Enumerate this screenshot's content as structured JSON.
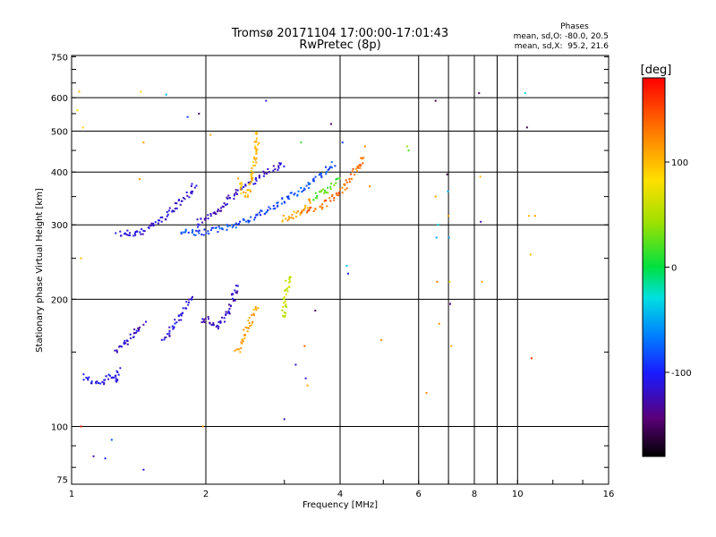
{
  "chart_data": {
    "type": "scatter",
    "title": "Tromsø 20171104 17:00:00-17:01:43",
    "subtitle": "RwPretec (8p)",
    "xlabel": "Frequency [MHz]",
    "ylabel": "Stationary phase Virtual Height [km]",
    "x_scale": "log",
    "y_scale": "log",
    "xlim": [
      1,
      16
    ],
    "ylim": [
      73,
      755
    ],
    "x_ticks": [
      1,
      2,
      4,
      6,
      8,
      10,
      16
    ],
    "x_tick_labels": [
      "1",
      "2",
      "4",
      "6",
      "8",
      "10",
      "16"
    ],
    "x_grid": [
      2,
      4,
      6,
      7,
      8,
      9,
      10
    ],
    "y_ticks": [
      75,
      100,
      200,
      300,
      400,
      500,
      600,
      750
    ],
    "y_tick_labels": [
      "75",
      "100",
      "200",
      "300",
      "400",
      "500",
      "600",
      "750"
    ],
    "y_grid": [
      100,
      200,
      300,
      400,
      500,
      600
    ],
    "grid": true,
    "colorbar": {
      "label": "[deg]",
      "range": [
        -180,
        180
      ],
      "ticks": [
        100,
        0,
        -100
      ],
      "tick_labels": [
        "100",
        "0",
        "-100"
      ]
    },
    "stats": {
      "heading": "Phases",
      "line1": "mean, sd,O: -80.0, 20.5",
      "line2": "mean, sd,X:  95.2, 21.6"
    },
    "traces": [
      {
        "points": [
          [
            1.06,
            132
          ],
          [
            1.1,
            128
          ],
          [
            1.14,
            126
          ],
          [
            1.18,
            127
          ],
          [
            1.22,
            132
          ],
          [
            1.25,
            128
          ],
          [
            1.28,
            138
          ]
        ],
        "phase": -108
      },
      {
        "points": [
          [
            1.27,
            285
          ],
          [
            1.32,
            288
          ],
          [
            1.38,
            282
          ],
          [
            1.45,
            290
          ],
          [
            1.52,
            300
          ],
          [
            1.6,
            310
          ],
          [
            1.7,
            330
          ],
          [
            1.78,
            345
          ],
          [
            1.85,
            360
          ],
          [
            1.9,
            375
          ]
        ],
        "phase": -115
      },
      {
        "points": [
          [
            1.75,
            290
          ],
          [
            1.82,
            287
          ],
          [
            1.9,
            287
          ],
          [
            1.98,
            288
          ],
          [
            2.05,
            290
          ],
          [
            2.15,
            293
          ],
          [
            2.25,
            297
          ],
          [
            2.35,
            302
          ],
          [
            2.45,
            307
          ],
          [
            2.55,
            312
          ],
          [
            2.65,
            318
          ],
          [
            2.75,
            325
          ],
          [
            2.85,
            332
          ],
          [
            2.95,
            340
          ],
          [
            3.05,
            348
          ],
          [
            3.15,
            355
          ],
          [
            3.3,
            365
          ],
          [
            3.45,
            378
          ],
          [
            3.6,
            392
          ],
          [
            3.75,
            405
          ],
          [
            3.9,
            420
          ]
        ],
        "phase": -85
      },
      {
        "points": [
          [
            1.9,
            300
          ],
          [
            2.0,
            310
          ],
          [
            2.1,
            320
          ],
          [
            2.2,
            335
          ],
          [
            2.3,
            350
          ],
          [
            2.4,
            365
          ],
          [
            2.55,
            380
          ],
          [
            2.7,
            395
          ],
          [
            2.85,
            410
          ],
          [
            3.0,
            420
          ]
        ],
        "phase": -118
      },
      {
        "points": [
          [
            1.6,
            160
          ],
          [
            1.68,
            170
          ],
          [
            1.75,
            182
          ],
          [
            1.82,
            195
          ],
          [
            1.86,
            205
          ]
        ],
        "phase": -112
      },
      {
        "points": [
          [
            1.95,
            176
          ],
          [
            2.02,
            180
          ],
          [
            2.1,
            172
          ],
          [
            2.18,
            178
          ],
          [
            2.26,
            190
          ],
          [
            2.32,
            205
          ],
          [
            2.36,
            215
          ]
        ],
        "phase": -120
      },
      {
        "points": [
          [
            1.26,
            150
          ],
          [
            1.32,
            158
          ],
          [
            1.4,
            168
          ],
          [
            1.46,
            175
          ]
        ],
        "phase": -118
      },
      {
        "points": [
          [
            2.38,
            380
          ],
          [
            2.42,
            360
          ],
          [
            2.46,
            350
          ],
          [
            2.5,
            365
          ],
          [
            2.54,
            385
          ],
          [
            2.56,
            410
          ],
          [
            2.58,
            440
          ],
          [
            2.6,
            470
          ],
          [
            2.62,
            500
          ]
        ],
        "phase": 100
      },
      {
        "points": [
          [
            2.95,
            310
          ],
          [
            3.05,
            312
          ],
          [
            3.15,
            315
          ],
          [
            3.25,
            320
          ],
          [
            3.35,
            330
          ],
          [
            3.45,
            345
          ]
        ],
        "phase": 108
      },
      {
        "points": [
          [
            3.3,
            320
          ],
          [
            3.45,
            325
          ],
          [
            3.6,
            330
          ],
          [
            3.75,
            340
          ],
          [
            3.9,
            352
          ],
          [
            4.05,
            365
          ],
          [
            4.15,
            378
          ],
          [
            4.25,
            390
          ],
          [
            4.35,
            405
          ],
          [
            4.45,
            420
          ],
          [
            4.5,
            440
          ]
        ],
        "phase": 135
      },
      {
        "points": [
          [
            3.45,
            345
          ],
          [
            3.6,
            355
          ],
          [
            3.75,
            362
          ],
          [
            3.9,
            375
          ],
          [
            4.0,
            390
          ]
        ],
        "phase": 25
      },
      {
        "points": [
          [
            2.35,
            150
          ],
          [
            2.4,
            158
          ],
          [
            2.45,
            166
          ],
          [
            2.5,
            174
          ],
          [
            2.55,
            185
          ],
          [
            2.62,
            192
          ]
        ],
        "phase": 110
      },
      {
        "points": [
          [
            2.98,
            180
          ],
          [
            3.0,
            190
          ],
          [
            3.02,
            200
          ],
          [
            3.04,
            210
          ],
          [
            3.06,
            220
          ],
          [
            3.08,
            230
          ]
        ],
        "phase": 62
      }
    ],
    "scatter": [
      [
        1.04,
        620,
        100
      ],
      [
        1.03,
        560,
        80
      ],
      [
        1.06,
        510,
        90
      ],
      [
        1.05,
        250,
        100
      ],
      [
        1.05,
        100,
        170
      ],
      [
        1.12,
        85,
        -130
      ],
      [
        1.19,
        84,
        -100
      ],
      [
        1.23,
        93,
        -80
      ],
      [
        1.45,
        79,
        -110
      ],
      [
        1.42,
        385,
        120
      ],
      [
        1.45,
        470,
        115
      ],
      [
        1.43,
        620,
        85
      ],
      [
        1.63,
        610,
        -45
      ],
      [
        1.82,
        540,
        -90
      ],
      [
        1.93,
        550,
        -150
      ],
      [
        1.97,
        100,
        120
      ],
      [
        2.05,
        490,
        110
      ],
      [
        2.73,
        590,
        -110
      ],
      [
        3.0,
        104,
        -120
      ],
      [
        3.18,
        140,
        -120
      ],
      [
        3.27,
        470,
        15
      ],
      [
        3.33,
        155,
        140
      ],
      [
        3.35,
        130,
        -120
      ],
      [
        3.38,
        125,
        110
      ],
      [
        3.52,
        188,
        -150
      ],
      [
        3.82,
        520,
        -150
      ],
      [
        4.05,
        470,
        -90
      ],
      [
        4.14,
        240,
        -40
      ],
      [
        4.17,
        230,
        -100
      ],
      [
        4.55,
        460,
        120
      ],
      [
        4.66,
        370,
        120
      ],
      [
        4.95,
        160,
        125
      ],
      [
        5.65,
        460,
        40
      ],
      [
        5.7,
        450,
        20
      ],
      [
        6.25,
        120,
        120
      ],
      [
        6.55,
        590,
        -155
      ],
      [
        6.55,
        350,
        110
      ],
      [
        6.58,
        280,
        -50
      ],
      [
        6.6,
        220,
        130
      ],
      [
        6.63,
        300,
        -30
      ],
      [
        6.67,
        175,
        120
      ],
      [
        6.95,
        395,
        -160
      ],
      [
        6.98,
        360,
        -50
      ],
      [
        7.0,
        315,
        110
      ],
      [
        7.02,
        280,
        -50
      ],
      [
        7.04,
        220,
        80
      ],
      [
        7.06,
        195,
        -140
      ],
      [
        7.1,
        155,
        105
      ],
      [
        8.2,
        615,
        -150
      ],
      [
        8.25,
        390,
        100
      ],
      [
        8.27,
        305,
        -130
      ],
      [
        8.32,
        220,
        110
      ],
      [
        10.4,
        615,
        -30
      ],
      [
        10.5,
        510,
        -160
      ],
      [
        10.6,
        315,
        100
      ],
      [
        10.7,
        255,
        100
      ],
      [
        10.75,
        145,
        160
      ],
      [
        10.95,
        315,
        110
      ]
    ]
  }
}
